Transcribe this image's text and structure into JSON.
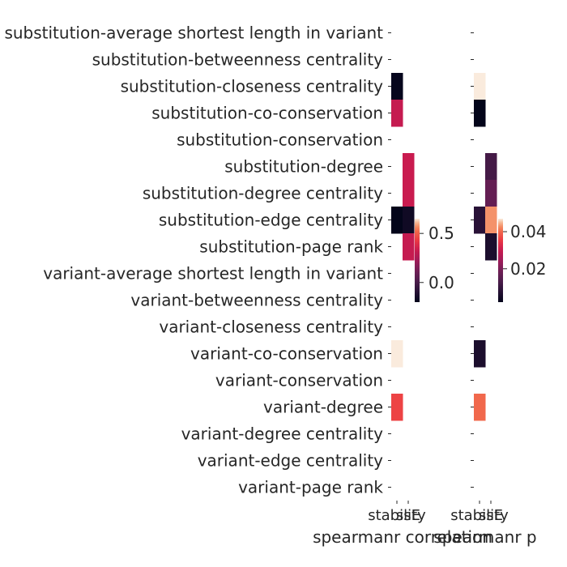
{
  "chart_data": {
    "type": "heatmap",
    "rows": [
      "substitution-average shortest length in variant",
      "substitution-betweenness centrality",
      "substitution-closeness centrality",
      "substitution-co-conservation",
      "substitution-conservation",
      "substitution-degree",
      "substitution-degree centrality",
      "substitution-edge centrality",
      "substitution-page rank",
      "variant-average shortest length in variant",
      "variant-betweenness centrality",
      "variant-closeness centrality",
      "variant-co-conservation",
      "variant-conservation",
      "variant-degree",
      "variant-degree centrality",
      "variant-edge centrality",
      "variant-page rank"
    ],
    "panels": [
      {
        "xlabel": "spearmanr correlation",
        "columns": [
          "stability",
          "ssE"
        ],
        "colorbar": {
          "range": [
            -0.2,
            0.65
          ],
          "ticks": [
            0.5,
            0.0
          ],
          "tick_labels": [
            "0.5",
            "0.0"
          ]
        },
        "values": [
          [
            null,
            null
          ],
          [
            null,
            null
          ],
          [
            -0.19,
            null
          ],
          [
            0.32,
            null
          ],
          [
            null,
            null
          ],
          [
            null,
            0.33
          ],
          [
            null,
            0.33
          ],
          [
            -0.2,
            -0.16
          ],
          [
            null,
            0.32
          ],
          [
            null,
            null
          ],
          [
            null,
            null
          ],
          [
            null,
            null
          ],
          [
            0.65,
            null
          ],
          [
            null,
            null
          ],
          [
            0.45,
            null
          ],
          [
            null,
            null
          ],
          [
            null,
            null
          ],
          [
            null,
            null
          ]
        ]
      },
      {
        "xlabel": "spearmanr p",
        "columns": [
          "stability",
          "ssE"
        ],
        "colorbar": {
          "range": [
            0.002,
            0.047
          ],
          "ticks": [
            0.04,
            0.02
          ],
          "tick_labels": [
            "0.04",
            "0.02"
          ]
        },
        "values": [
          [
            null,
            null
          ],
          [
            null,
            null
          ],
          [
            0.047,
            null
          ],
          [
            0.002,
            null
          ],
          [
            null,
            null
          ],
          [
            null,
            0.012
          ],
          [
            null,
            0.017
          ],
          [
            0.008,
            0.043
          ],
          [
            null,
            0.006
          ],
          [
            null,
            null
          ],
          [
            null,
            null
          ],
          [
            null,
            null
          ],
          [
            0.006,
            null
          ],
          [
            null,
            null
          ],
          [
            0.04,
            null
          ],
          [
            null,
            null
          ],
          [
            null,
            null
          ],
          [
            null,
            null
          ]
        ]
      }
    ]
  }
}
